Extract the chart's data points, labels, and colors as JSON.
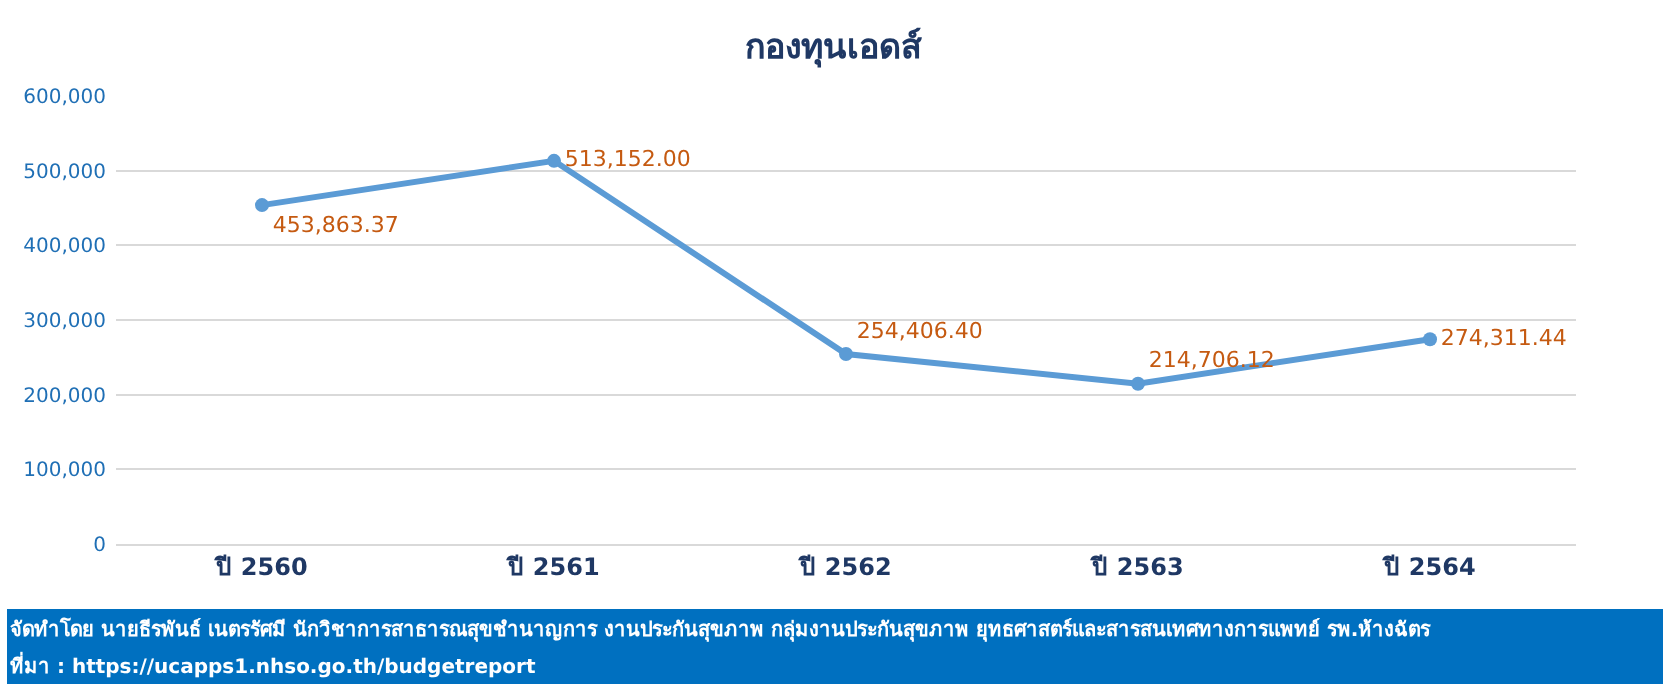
{
  "chart_data": {
    "type": "line",
    "title": "กองทุนเอดส์",
    "categories": [
      "ปี 2560",
      "ปี 2561",
      "ปี 2562",
      "ปี 2563",
      "ปี 2564"
    ],
    "series": [
      {
        "color": "#5b9bd5",
        "values": [
          453863.37,
          513152.0,
          254406.4,
          214706.12,
          274311.44
        ],
        "value_labels": [
          "453,863.37",
          "513,152.00",
          "254,406.40",
          "214,706.12",
          "274,311.44"
        ]
      }
    ],
    "ylim": [
      0,
      600000
    ],
    "yticks": [
      {
        "value": 0,
        "label": "0"
      },
      {
        "value": 100000,
        "label": "100,000"
      },
      {
        "value": 200000,
        "label": "200,000"
      },
      {
        "value": 300000,
        "label": "300,000"
      },
      {
        "value": 400000,
        "label": "400,000"
      },
      {
        "value": 500000,
        "label": "500,000"
      },
      {
        "value": 600000,
        "label": "600,000"
      }
    ],
    "grid": "y",
    "marker": "circle",
    "line_style": "solid",
    "legend": false,
    "annotations": [
      "จัดทำโดย นายธีรพันธ์ เนตรรัศมี นักวิชาการสาธารณสุขชำนาญการ งานประกันสุขภาพ กลุ่มงานประกันสุขภาพ ยุทธศาสตร์และสารสนเทศทางการแพทย์ รพ.ห้างฉัตร",
      "ที่มา : https://ucapps1.nhso.go.th/budgetreport"
    ]
  }
}
